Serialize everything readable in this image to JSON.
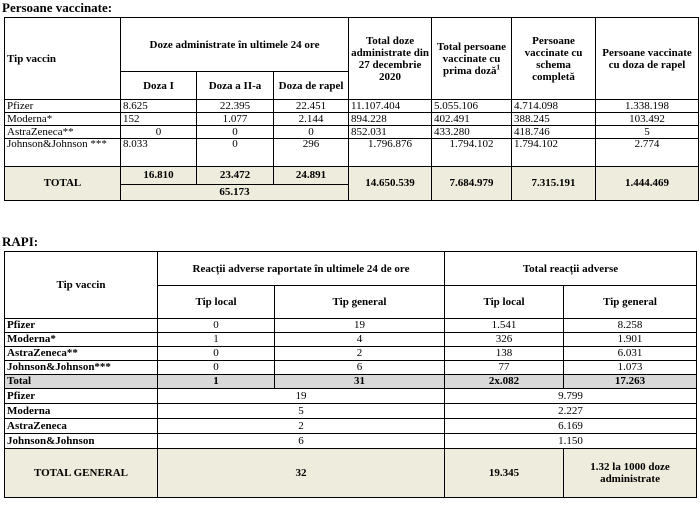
{
  "vaccinated": {
    "heading": "Persoane vaccinate:",
    "headers": {
      "tip_vaccin": "Tip vaccin",
      "doze_24h": "Doze administrate în ultimele 24 ore",
      "doza1": "Doza I",
      "doza2": "Doza a II-a",
      "doza_rapel": "Doza de rapel",
      "total_doze": "Total doze administrate din 27 decembrie 2020",
      "total_prima": "Total persoane vaccinate cu prima doză",
      "total_prima_sup": "1",
      "schema_completa": "Persoane vaccinate cu schema completă",
      "cu_rapel": "Persoane vaccinate cu doza de rapel"
    },
    "rows": [
      {
        "name": "Pfizer",
        "d1": "8.625",
        "d2": "22.395",
        "d3": "22.451",
        "total": "11.107.404",
        "prima": "5.055.106",
        "complet": "4.714.098",
        "rapel": "1.338.198"
      },
      {
        "name": "Moderna*",
        "d1": "152",
        "d2": "1.077",
        "d3": "2.144",
        "total": "894.228",
        "prima": "402.491",
        "complet": "388.245",
        "rapel": "103.492"
      },
      {
        "name": "AstraZeneca**",
        "d1": "0",
        "d2": "0",
        "d3": "0",
        "total": "852.031",
        "prima": "433.280",
        "complet": "418.746",
        "rapel": "5"
      },
      {
        "name": "Johnson&Johnson ***",
        "d1": "8.033",
        "d2": "0",
        "d3": "296",
        "total": "1.796.876",
        "prima": "1.794.102",
        "complet": "1.794.102",
        "rapel": "2.774"
      }
    ],
    "total": {
      "label": "TOTAL",
      "d1": "16.810",
      "d2": "23.472",
      "d3": "24.891",
      "sum24h": "65.173",
      "total": "14.650.539",
      "prima": "7.684.979",
      "complet": "7.315.191",
      "rapel": "1.444.469"
    }
  },
  "rapi": {
    "heading": "RAPI:",
    "headers": {
      "tip_vaccin": "Tip vaccin",
      "reactii_24h": "Reacții adverse raportate în ultimele 24 de ore",
      "total_reactii": "Total reacții adverse",
      "tip_local": "Tip local",
      "tip_general": "Tip general"
    },
    "rows": [
      {
        "name": "Pfizer",
        "l24": "0",
        "g24": "19",
        "lt": "1.541",
        "gt": "8.258"
      },
      {
        "name": "Moderna*",
        "l24": "1",
        "g24": "4",
        "lt": "326",
        "gt": "1.901"
      },
      {
        "name": "AstraZeneca**",
        "l24": "0",
        "g24": "2",
        "lt": "138",
        "gt": "6.031"
      },
      {
        "name": "Johnson&Johnson***",
        "l24": "0",
        "g24": "6",
        "lt": "77",
        "gt": "1.073"
      }
    ],
    "total": {
      "label": "Total",
      "l24": "1",
      "g24": "31",
      "lt": "2x.082",
      "gt": "17.263"
    },
    "summary": [
      {
        "name": "Pfizer",
        "v24": "19",
        "vt": "9.799"
      },
      {
        "name": "Moderna",
        "v24": "5",
        "vt": "2.227"
      },
      {
        "name": "AstraZeneca",
        "v24": "2",
        "vt": "6.169"
      },
      {
        "name": "Johnson&Johnson",
        "v24": "6",
        "vt": "1.150"
      }
    ],
    "grand_total": {
      "label": "TOTAL GENERAL",
      "v24": "32",
      "vt": "19.345",
      "rate": "1.32 la 1000 doze administrate"
    }
  }
}
